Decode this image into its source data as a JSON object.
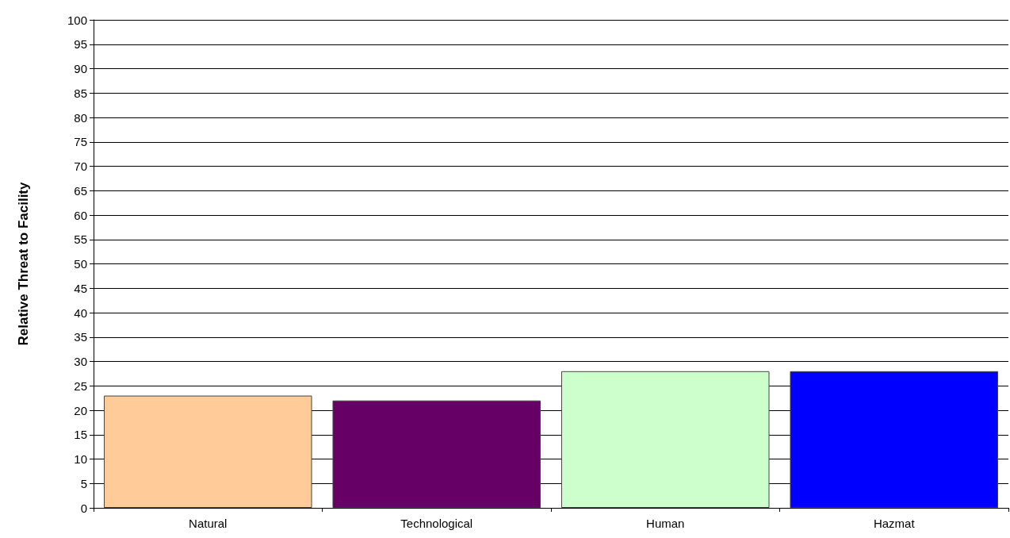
{
  "chart_data": {
    "type": "bar",
    "ylabel": "Relative Threat to Facility",
    "categories": [
      "Natural",
      "Technological",
      "Human",
      "Hazmat"
    ],
    "values": [
      23,
      22,
      28,
      28
    ],
    "colors": [
      "#ffcc99",
      "#660066",
      "#ccffcc",
      "#0000ff"
    ],
    "ylim": [
      0,
      100
    ],
    "yticks": [
      0,
      5,
      10,
      15,
      20,
      25,
      30,
      35,
      40,
      45,
      50,
      55,
      60,
      65,
      70,
      75,
      80,
      85,
      90,
      95,
      100
    ],
    "grid": "y"
  }
}
